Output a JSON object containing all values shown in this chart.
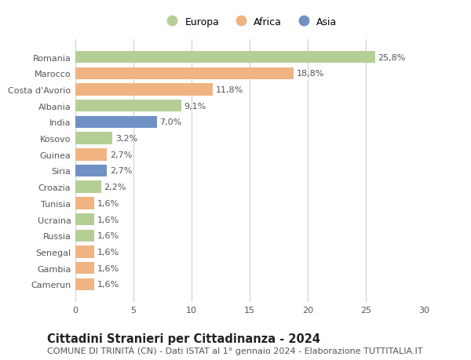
{
  "categories": [
    "Camerun",
    "Gambia",
    "Senegal",
    "Russia",
    "Ucraina",
    "Tunisia",
    "Croazia",
    "Siria",
    "Guinea",
    "Kosovo",
    "India",
    "Albania",
    "Costa d'Avorio",
    "Marocco",
    "Romania"
  ],
  "values": [
    1.6,
    1.6,
    1.6,
    1.6,
    1.6,
    1.6,
    2.2,
    2.7,
    2.7,
    3.2,
    7.0,
    9.1,
    11.8,
    18.8,
    25.8
  ],
  "labels": [
    "1,6%",
    "1,6%",
    "1,6%",
    "1,6%",
    "1,6%",
    "1,6%",
    "2,2%",
    "2,7%",
    "2,7%",
    "3,2%",
    "7,0%",
    "9,1%",
    "11,8%",
    "18,8%",
    "25,8%"
  ],
  "colors": [
    "#f0b482",
    "#f0b482",
    "#f0b482",
    "#b5ce96",
    "#b5ce96",
    "#f0b482",
    "#b5ce96",
    "#7091c4",
    "#f0b482",
    "#b5ce96",
    "#7091c4",
    "#b5ce96",
    "#f0b482",
    "#f0b482",
    "#b5ce96"
  ],
  "continent_colors": {
    "Europa": "#b5ce96",
    "Africa": "#f0b482",
    "Asia": "#7091c4"
  },
  "title": "Cittadini Stranieri per Cittadinanza - 2024",
  "subtitle": "COMUNE DI TRINITÀ (CN) - Dati ISTAT al 1° gennaio 2024 - Elaborazione TUTTITALIA.IT",
  "xlim": [
    0,
    30
  ],
  "xticks": [
    0,
    5,
    10,
    15,
    20,
    25,
    30
  ],
  "background_color": "#ffffff",
  "grid_color": "#d0d0d0",
  "bar_height": 0.75,
  "title_fontsize": 10.5,
  "subtitle_fontsize": 8.0,
  "label_fontsize": 8.0,
  "tick_fontsize": 8.0,
  "legend_fontsize": 9.0
}
